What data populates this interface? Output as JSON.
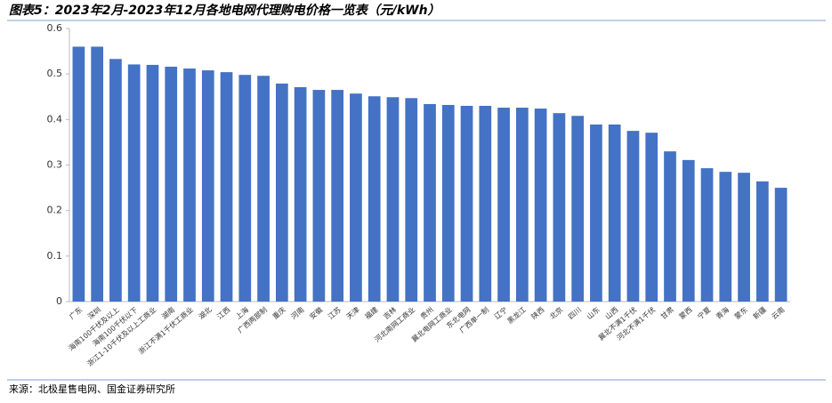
{
  "chart_data": {
    "type": "bar",
    "title": "图表5：2023年2月-2023年12月各地电网代理购电价格一览表（元/kWh）",
    "source": "来源：北极星售电网、国金证券研究所",
    "categories": [
      "广东",
      "深圳",
      "海南100千伏及以上",
      "海南100千伏以下",
      "浙江1-10千伏及以上工商业",
      "湖南",
      "浙江不满1千伏工商业",
      "湖北",
      "江西",
      "上海",
      "广西两部制",
      "重庆",
      "河南",
      "安徽",
      "江苏",
      "天津",
      "福建",
      "吉林",
      "河北南网工商业",
      "贵州",
      "冀北电网工商业",
      "东北电网",
      "广西单一制",
      "辽宁",
      "黑龙江",
      "陕西",
      "北京",
      "四川",
      "山东",
      "山西",
      "冀北不满1千伏",
      "河北不满1千伏",
      "甘肃",
      "蒙西",
      "宁夏",
      "青海",
      "蒙东",
      "新疆",
      "云南"
    ],
    "values": [
      0.56,
      0.56,
      0.533,
      0.521,
      0.52,
      0.516,
      0.512,
      0.508,
      0.504,
      0.498,
      0.496,
      0.479,
      0.471,
      0.465,
      0.465,
      0.457,
      0.451,
      0.449,
      0.447,
      0.434,
      0.432,
      0.43,
      0.43,
      0.426,
      0.426,
      0.424,
      0.414,
      0.408,
      0.389,
      0.389,
      0.375,
      0.371,
      0.33,
      0.311,
      0.293,
      0.285,
      0.283,
      0.264,
      0.25
    ],
    "color": "#4472c4",
    "ylim": [
      0,
      0.6
    ],
    "yticks": [
      {
        "value": 0,
        "label": "0"
      },
      {
        "value": 0.1,
        "label": "0.1"
      },
      {
        "value": 0.2,
        "label": "0.2"
      },
      {
        "value": 0.3,
        "label": "0.3"
      },
      {
        "value": 0.4,
        "label": "0.4"
      },
      {
        "value": 0.5,
        "label": "0.5"
      },
      {
        "value": 0.6,
        "label": "0.6"
      }
    ],
    "grid": false
  }
}
